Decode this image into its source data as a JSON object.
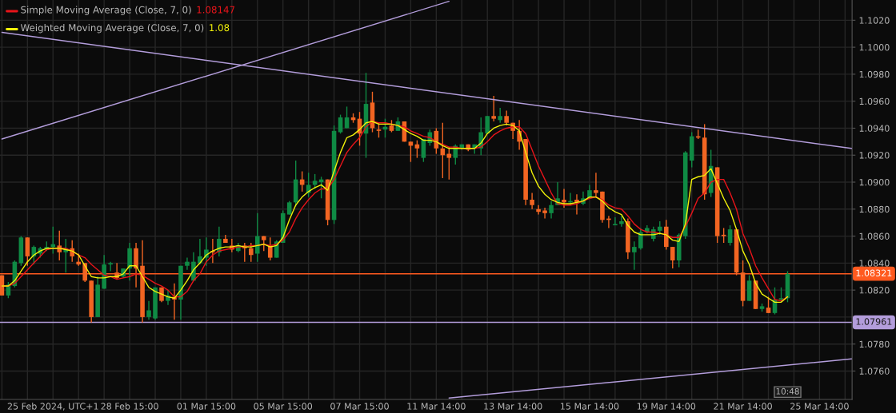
{
  "chart_data": {
    "type": "candlestick",
    "categories": [
      null,
      null,
      null,
      null,
      null,
      null,
      null,
      null,
      "25 Feb 2024, UTC+1",
      null,
      null,
      null,
      null,
      null,
      null,
      null,
      null,
      null,
      null,
      null,
      "28 Feb 15:00",
      null,
      null,
      null,
      null,
      null,
      null,
      null,
      null,
      null,
      null,
      null,
      "01 Mar 15:00",
      null,
      null,
      null,
      null,
      null,
      null,
      null,
      null,
      null,
      null,
      null,
      "05 Mar 15:00",
      null,
      null,
      null,
      null,
      null,
      null,
      null,
      null,
      null,
      null,
      null,
      "07 Mar 15:00",
      null,
      null,
      null,
      null,
      null,
      null,
      null,
      null,
      null,
      null,
      null,
      "11 Mar 14:00",
      null,
      null,
      null,
      null,
      null,
      null,
      null,
      null,
      null,
      null,
      null,
      "13 Mar 14:00",
      null,
      null,
      null,
      null,
      null,
      null,
      null,
      null,
      null,
      null,
      null,
      "15 Mar 14:00",
      null,
      null,
      null,
      null,
      null,
      null,
      null,
      null,
      null,
      null,
      null,
      "19 Mar 14:00",
      null,
      null,
      null,
      null,
      null,
      null,
      null,
      null,
      null,
      null,
      null,
      "21 Mar 14:00",
      null,
      null,
      null,
      null,
      null,
      null,
      null,
      null,
      null,
      null,
      null,
      "25 Mar 14:00",
      null,
      null,
      null,
      null,
      null
    ],
    "ohlc": [
      [
        1.0831,
        1.0831,
        1.0816,
        1.0816
      ],
      [
        1.0816,
        1.0826,
        1.0814,
        1.0824
      ],
      [
        1.0823,
        1.0842,
        1.0822,
        1.0841
      ],
      [
        1.084,
        1.086,
        1.0838,
        1.0859
      ],
      [
        1.0859,
        1.0859,
        1.0838,
        1.0845
      ],
      [
        1.0845,
        1.0853,
        1.0839,
        1.0852
      ],
      [
        1.0847,
        1.0852,
        1.0844,
        1.0851
      ],
      [
        1.085,
        1.0856,
        1.0849,
        1.0852
      ],
      [
        1.0852,
        1.0867,
        1.0847,
        1.0854
      ],
      [
        1.0853,
        1.0864,
        1.0842,
        1.0848
      ],
      [
        1.0848,
        1.0858,
        1.0833,
        1.0851
      ],
      [
        1.0851,
        1.0857,
        1.0841,
        1.0845
      ],
      [
        1.0841,
        1.0847,
        1.0838,
        1.0839
      ],
      [
        1.084,
        1.084,
        1.0826,
        1.0827
      ],
      [
        1.0827,
        1.0827,
        1.0796,
        1.08
      ],
      [
        1.08,
        1.083,
        1.08,
        1.0824
      ],
      [
        1.0821,
        1.0846,
        1.0821,
        1.0839
      ],
      [
        1.0839,
        1.0841,
        1.0834,
        1.084
      ],
      [
        1.0833,
        1.084,
        1.0828,
        1.0829
      ],
      [
        1.083,
        1.0836,
        1.0829,
        1.0836
      ],
      [
        1.0836,
        1.0855,
        1.0827,
        1.0851
      ],
      [
        1.0851,
        1.0855,
        1.0822,
        1.0836
      ],
      [
        1.0838,
        1.0857,
        1.0796,
        1.08
      ],
      [
        1.08,
        1.0812,
        1.0798,
        1.0805
      ],
      [
        1.0799,
        1.0822,
        1.0798,
        1.0822
      ],
      [
        1.0822,
        1.0822,
        1.0811,
        1.0812
      ],
      [
        1.0812,
        1.082,
        1.0809,
        1.0816
      ],
      [
        1.0815,
        1.0825,
        1.0798,
        1.0813
      ],
      [
        1.0813,
        1.0838,
        1.0798,
        1.0838
      ],
      [
        1.0838,
        1.0844,
        1.0835,
        1.0841
      ],
      [
        1.0827,
        1.0848,
        1.0827,
        1.0841
      ],
      [
        1.084,
        1.0858,
        1.0839,
        1.0845
      ],
      [
        1.0844,
        1.0859,
        1.0838,
        1.085
      ],
      [
        1.0849,
        1.0858,
        1.084,
        1.0848
      ],
      [
        1.0848,
        1.0867,
        1.0845,
        1.0858
      ],
      [
        1.0858,
        1.0861,
        1.0855,
        1.0855
      ],
      [
        1.0853,
        1.0858,
        1.0848,
        1.085
      ],
      [
        1.0849,
        1.0855,
        1.0848,
        1.0853
      ],
      [
        1.0853,
        1.0855,
        1.0841,
        1.0851
      ],
      [
        1.0851,
        1.0855,
        1.0841,
        1.0846
      ],
      [
        1.0847,
        1.0877,
        1.0841,
        1.086
      ],
      [
        1.086,
        1.086,
        1.0849,
        1.0857
      ],
      [
        1.0853,
        1.0859,
        1.0842,
        1.0844
      ],
      [
        1.0844,
        1.0857,
        1.0844,
        1.0856
      ],
      [
        1.0855,
        1.0879,
        1.0855,
        1.0877
      ],
      [
        1.0876,
        1.0886,
        1.0876,
        1.0885
      ],
      [
        1.0885,
        1.0916,
        1.0882,
        1.0902
      ],
      [
        1.0902,
        1.0908,
        1.0893,
        1.0898
      ],
      [
        1.0892,
        1.0907,
        1.0889,
        1.0898
      ],
      [
        1.0898,
        1.0906,
        1.0895,
        1.0901
      ],
      [
        1.09,
        1.0904,
        1.0888,
        1.0902
      ],
      [
        1.0902,
        1.0902,
        1.0868,
        1.0872
      ],
      [
        1.0872,
        1.0942,
        1.0869,
        1.0938
      ],
      [
        1.0937,
        1.095,
        1.0936,
        1.0948
      ],
      [
        1.094,
        1.0956,
        1.094,
        1.0948
      ],
      [
        1.0948,
        1.0951,
        1.0944,
        1.0946
      ],
      [
        1.0947,
        1.0952,
        1.0927,
        1.0936
      ],
      [
        1.0936,
        1.0981,
        1.0918,
        1.0958
      ],
      [
        1.0959,
        1.0967,
        1.0937,
        1.094
      ],
      [
        1.0939,
        1.0944,
        1.0933,
        1.0938
      ],
      [
        1.0939,
        1.0947,
        1.0933,
        1.0941
      ],
      [
        1.0942,
        1.0946,
        1.0937,
        1.0938
      ],
      [
        1.0938,
        1.0948,
        1.0938,
        1.0945
      ],
      [
        1.0945,
        1.0945,
        1.093,
        1.093
      ],
      [
        1.093,
        1.093,
        1.0915,
        1.0927
      ],
      [
        1.0928,
        1.0931,
        1.0918,
        1.0925
      ],
      [
        1.0918,
        1.0932,
        1.0915,
        1.0932
      ],
      [
        1.0929,
        1.0939,
        1.0927,
        1.0937
      ],
      [
        1.0938,
        1.094,
        1.0921,
        1.0925
      ],
      [
        1.0925,
        1.0944,
        1.0903,
        1.092
      ],
      [
        1.0921,
        1.0926,
        1.0902,
        1.0918
      ],
      [
        1.0918,
        1.0928,
        1.0913,
        1.0927
      ],
      [
        1.0925,
        1.0928,
        1.0924,
        1.0928
      ],
      [
        1.0928,
        1.0928,
        1.0923,
        1.0924
      ],
      [
        1.0925,
        1.0928,
        1.0921,
        1.0928
      ],
      [
        1.0925,
        1.0948,
        1.092,
        1.0937
      ],
      [
        1.0936,
        1.0949,
        1.0936,
        1.0949
      ],
      [
        1.0949,
        1.0964,
        1.0945,
        1.0947
      ],
      [
        1.0946,
        1.0955,
        1.0944,
        1.0949
      ],
      [
        1.0949,
        1.0953,
        1.0942,
        1.0944
      ],
      [
        1.0944,
        1.0944,
        1.0932,
        1.0938
      ],
      [
        1.0938,
        1.0946,
        1.0924,
        1.093
      ],
      [
        1.0932,
        1.0932,
        1.0883,
        1.0887
      ],
      [
        1.0887,
        1.0892,
        1.088,
        1.0883
      ],
      [
        1.088,
        1.0883,
        1.0876,
        1.0878
      ],
      [
        1.0879,
        1.0881,
        1.0873,
        1.0877
      ],
      [
        1.0877,
        1.0886,
        1.0873,
        1.0883
      ],
      [
        1.0883,
        1.09,
        1.0883,
        1.0888
      ],
      [
        1.0887,
        1.0895,
        1.0881,
        1.0885
      ],
      [
        1.0885,
        1.0892,
        1.0883,
        1.0886
      ],
      [
        1.0887,
        1.0891,
        1.0876,
        1.0885
      ],
      [
        1.0884,
        1.0893,
        1.0883,
        1.0888
      ],
      [
        1.0888,
        1.0898,
        1.0888,
        1.0894
      ],
      [
        1.0894,
        1.0907,
        1.0889,
        1.0892
      ],
      [
        1.0893,
        1.0893,
        1.087,
        1.0872
      ],
      [
        1.0873,
        1.0875,
        1.0866,
        1.0872
      ],
      [
        1.0868,
        1.0874,
        1.0868,
        1.0869
      ],
      [
        1.0869,
        1.0875,
        1.0867,
        1.0871
      ],
      [
        1.0871,
        1.0873,
        1.0843,
        1.0848
      ],
      [
        1.0848,
        1.0856,
        1.0835,
        1.0852
      ],
      [
        1.0851,
        1.0866,
        1.085,
        1.0863
      ],
      [
        1.0863,
        1.0868,
        1.0862,
        1.0866
      ],
      [
        1.0858,
        1.0867,
        1.0856,
        1.0865
      ],
      [
        1.0864,
        1.0871,
        1.0861,
        1.0867
      ],
      [
        1.0867,
        1.0872,
        1.085,
        1.0852
      ],
      [
        1.0852,
        1.0852,
        1.0836,
        1.0842
      ],
      [
        1.0842,
        1.0862,
        1.0837,
        1.0861
      ],
      [
        1.086,
        1.0923,
        1.0858,
        1.0922
      ],
      [
        1.0916,
        1.0937,
        1.0911,
        1.0934
      ],
      [
        1.0934,
        1.0939,
        1.0932,
        1.0933
      ],
      [
        1.0933,
        1.0943,
        1.0887,
        1.0891
      ],
      [
        1.0892,
        1.0924,
        1.0889,
        1.0912
      ],
      [
        1.0911,
        1.0911,
        1.0855,
        1.086
      ],
      [
        1.0861,
        1.0866,
        1.0855,
        1.086
      ],
      [
        1.0855,
        1.0868,
        1.0853,
        1.0865
      ],
      [
        1.0865,
        1.0865,
        1.0831,
        1.0833
      ],
      [
        1.0833,
        1.0842,
        1.0808,
        1.0812
      ],
      [
        1.0812,
        1.0831,
        1.0812,
        1.0827
      ],
      [
        1.0827,
        1.0827,
        1.0806,
        1.0806
      ],
      [
        1.0806,
        1.081,
        1.0804,
        1.0808
      ],
      [
        1.0807,
        1.0815,
        1.0803,
        1.0803
      ],
      [
        1.0803,
        1.0822,
        1.0802,
        1.0813
      ],
      [
        1.0813,
        1.0822,
        1.0811,
        1.0814
      ],
      [
        1.0814,
        1.0834,
        1.0811,
        1.0832
      ],
      null,
      null,
      null,
      null,
      null,
      null,
      null,
      null,
      null,
      null
    ],
    "colors": [
      "#f26522",
      "#0f8a44",
      "#0f8a44",
      "#0f8a44",
      "#f26522",
      "#0f8a44",
      "#0f8a44",
      "#0f8a44",
      "#0f8a44",
      "#f26522",
      "#0f8a44",
      "#f26522",
      "#f26522",
      "#f26522",
      "#f26522",
      "#0f8a44",
      "#0f8a44",
      "#0f8a44",
      "#f26522",
      "#0f8a44",
      "#0f8a44",
      "#f26522",
      "#f26522",
      "#0f8a44",
      "#0f8a44",
      "#f26522",
      "#0f8a44",
      "#f26522",
      "#0f8a44",
      "#0f8a44",
      "#0f8a44",
      "#0f8a44",
      "#0f8a44",
      "#f26522",
      "#0f8a44",
      "#f26522",
      "#f26522",
      "#0f8a44",
      "#f26522",
      "#f26522",
      "#0f8a44",
      "#f26522",
      "#f26522",
      "#0f8a44",
      "#0f8a44",
      "#0f8a44",
      "#0f8a44",
      "#f26522",
      "#0f8a44",
      "#0f8a44",
      "#0f8a44",
      "#f26522",
      "#0f8a44",
      "#0f8a44",
      "#0f8a44",
      "#f26522",
      "#f26522",
      "#0f8a44",
      "#f26522",
      "#f26522",
      "#0f8a44",
      "#f26522",
      "#0f8a44",
      "#f26522",
      "#f26522",
      "#f26522",
      "#0f8a44",
      "#0f8a44",
      "#f26522",
      "#f26522",
      "#f26522",
      "#0f8a44",
      "#0f8a44",
      "#f26522",
      "#0f8a44",
      "#0f8a44",
      "#0f8a44",
      "#f26522",
      "#0f8a44",
      "#f26522",
      "#f26522",
      "#f26522",
      "#f26522",
      "#f26522",
      "#f26522",
      "#f26522",
      "#0f8a44",
      "#0f8a44",
      "#f26522",
      "#0f8a44",
      "#f26522",
      "#0f8a44",
      "#0f8a44",
      "#f26522",
      "#f26522",
      "#f26522",
      "#0f8a44",
      "#0f8a44",
      "#f26522",
      "#0f8a44",
      "#0f8a44",
      "#0f8a44",
      "#0f8a44",
      "#0f8a44",
      "#f26522",
      "#f26522",
      "#0f8a44",
      "#0f8a44",
      "#0f8a44",
      "#f26522",
      "#f26522",
      "#0f8a44",
      "#f26522",
      "#f26522",
      "#0f8a44",
      "#f26522",
      "#f26522",
      "#0f8a44",
      "#f26522",
      "#0f8a44",
      "#f26522",
      "#0f8a44",
      "#0f8a44",
      "#0f8a44",
      null,
      null,
      null,
      null,
      null,
      null,
      null,
      null,
      null,
      null
    ],
    "series": [
      {
        "name": "Simple Moving Average (Close, 7, 0)",
        "type": "line",
        "color": "#e8141a",
        "values": [
          1.0823,
          1.0823,
          1.0825,
          1.083,
          1.0835,
          1.084,
          1.0845,
          1.085,
          1.0851,
          1.0851,
          1.0851,
          1.0849,
          1.0846,
          1.0844,
          1.0839,
          1.0835,
          1.0831,
          1.083,
          1.0828,
          1.0829,
          1.083,
          1.0832,
          1.0831,
          1.0828,
          1.0825,
          1.0823,
          1.082,
          1.0815,
          1.0815,
          1.0819,
          1.0827,
          1.0832,
          1.0841,
          1.0846,
          1.0849,
          1.085,
          1.0851,
          1.0852,
          1.0852,
          1.0853,
          1.0853,
          1.0854,
          1.0853,
          1.0854,
          1.0857,
          1.0863,
          1.0873,
          1.0881,
          1.0887,
          1.0892,
          1.0895,
          1.0895,
          1.0902,
          1.0912,
          1.0922,
          1.0928,
          1.0933,
          1.0941,
          1.0945,
          1.0944,
          1.0944,
          1.0943,
          1.0942,
          1.0941,
          1.0938,
          1.0936,
          1.0934,
          1.0933,
          1.093,
          1.0928,
          1.0926,
          1.0926,
          1.0925,
          1.0925,
          1.0925,
          1.0926,
          1.093,
          1.0935,
          1.0938,
          1.094,
          1.0941,
          1.0941,
          1.0936,
          1.0924,
          1.0912,
          1.0902,
          1.0892,
          1.0884,
          1.0883,
          1.0883,
          1.0884,
          1.0886,
          1.0888,
          1.0889,
          1.0887,
          1.0883,
          1.0881,
          1.088,
          1.0875,
          1.0869,
          1.0865,
          1.0863,
          1.0863,
          1.0862,
          1.0861,
          1.0859,
          1.0859,
          1.0867,
          1.0877,
          1.0888,
          1.0892,
          1.09,
          1.0902,
          1.0902,
          1.0892,
          1.088,
          1.0862,
          1.0851,
          1.0838,
          1.0829,
          1.0821,
          1.0813,
          1.0812,
          1.0815,
          null,
          null,
          null,
          null,
          null,
          null,
          null,
          null,
          null,
          null
        ]
      },
      {
        "name": "Weighted Moving Average (Close, 7, 0)",
        "type": "line",
        "color": "#f2f20a",
        "values": [
          1.0823,
          1.0823,
          1.0827,
          1.0834,
          1.0841,
          1.0846,
          1.0849,
          1.0851,
          1.0851,
          1.0851,
          1.085,
          1.0849,
          1.0846,
          1.0838,
          1.083,
          1.0829,
          1.0829,
          1.083,
          1.083,
          1.0832,
          1.0838,
          1.0838,
          1.083,
          1.0822,
          1.0819,
          1.0817,
          1.0815,
          1.0814,
          1.082,
          1.0827,
          1.0835,
          1.084,
          1.0846,
          1.0849,
          1.0851,
          1.0852,
          1.0852,
          1.0853,
          1.0852,
          1.0852,
          1.0853,
          1.0854,
          1.0852,
          1.0853,
          1.0859,
          1.0872,
          1.0883,
          1.0889,
          1.0893,
          1.0896,
          1.0898,
          1.0894,
          1.0908,
          1.0922,
          1.0933,
          1.0935,
          1.0939,
          1.0944,
          1.0945,
          1.0943,
          1.0943,
          1.0943,
          1.0942,
          1.0939,
          1.0936,
          1.0934,
          1.0931,
          1.0931,
          1.093,
          1.0927,
          1.0925,
          1.0925,
          1.0925,
          1.0925,
          1.0925,
          1.0929,
          1.0936,
          1.094,
          1.0942,
          1.0943,
          1.0942,
          1.0938,
          1.0922,
          1.0907,
          1.0897,
          1.0891,
          1.0887,
          1.0885,
          1.0884,
          1.0884,
          1.0885,
          1.0886,
          1.0889,
          1.0889,
          1.0886,
          1.0881,
          1.0878,
          1.0876,
          1.0868,
          1.0863,
          1.0861,
          1.0861,
          1.0861,
          1.0862,
          1.0861,
          1.0857,
          1.0856,
          1.0869,
          1.0902,
          1.0904,
          1.0905,
          1.091,
          1.0899,
          1.0888,
          1.0879,
          1.0865,
          1.0849,
          1.0839,
          1.0825,
          1.0817,
          1.0814,
          1.0811,
          1.0811,
          1.0815,
          null,
          null,
          null,
          null,
          null,
          null,
          null,
          null,
          null,
          null
        ]
      },
      {
        "type": "line",
        "color": "#b39ddb",
        "values": [
          1.0932,
          null,
          null,
          null,
          null,
          null,
          null,
          null,
          null,
          null,
          null,
          null,
          null,
          null,
          null,
          null,
          null,
          null,
          null,
          null,
          null,
          null,
          null,
          null,
          null,
          null,
          null,
          null,
          null,
          null,
          null,
          null,
          null,
          null,
          null,
          null,
          null,
          null,
          null,
          null,
          null,
          null,
          null,
          null,
          null,
          null,
          null,
          null,
          null,
          null,
          null,
          null,
          null,
          null,
          null,
          null,
          null,
          null,
          null,
          null,
          null,
          null,
          null,
          null,
          null,
          null,
          null,
          null,
          null,
          null,
          1.1034,
          null,
          null,
          null,
          null,
          null,
          null,
          null,
          null,
          null,
          null,
          null,
          null,
          null,
          null,
          null,
          null,
          null,
          null,
          null,
          null,
          null,
          null,
          null,
          null,
          null,
          null,
          null,
          null,
          null,
          null,
          null,
          null,
          null,
          null,
          null,
          null,
          null,
          null,
          null,
          null,
          null,
          null,
          null,
          null,
          null,
          null,
          null,
          null,
          null,
          null,
          null,
          null,
          null,
          null,
          null,
          null,
          null,
          null,
          null,
          null,
          null,
          null,
          null
        ]
      },
      {
        "type": "line",
        "color": "#b39ddb",
        "values": [
          1.1011,
          null,
          null,
          null,
          null,
          null,
          null,
          null,
          null,
          null,
          null,
          null,
          null,
          null,
          null,
          null,
          null,
          null,
          null,
          null,
          null,
          null,
          null,
          null,
          null,
          null,
          null,
          null,
          null,
          null,
          null,
          null,
          null,
          null,
          null,
          null,
          null,
          null,
          null,
          null,
          null,
          null,
          null,
          null,
          null,
          null,
          null,
          null,
          null,
          null,
          null,
          null,
          null,
          null,
          null,
          null,
          null,
          null,
          null,
          null,
          null,
          null,
          null,
          null,
          null,
          null,
          null,
          null,
          null,
          null,
          null,
          null,
          null,
          null,
          null,
          null,
          null,
          null,
          null,
          null,
          null,
          null,
          null,
          null,
          null,
          null,
          null,
          null,
          null,
          null,
          null,
          null,
          null,
          null,
          null,
          null,
          null,
          null,
          null,
          null,
          null,
          null,
          null,
          null,
          null,
          null,
          null,
          null,
          null,
          null,
          null,
          null,
          null,
          null,
          null,
          null,
          null,
          null,
          null,
          null,
          null,
          null,
          null,
          null,
          null,
          null,
          null,
          null,
          null,
          null,
          null,
          null,
          null,
          1.0925
        ]
      },
      {
        "type": "line",
        "color": "#b39ddb",
        "values": [
          null,
          null,
          null,
          null,
          null,
          null,
          null,
          null,
          null,
          null,
          null,
          null,
          null,
          null,
          null,
          null,
          null,
          null,
          null,
          null,
          null,
          null,
          null,
          null,
          null,
          null,
          null,
          null,
          null,
          null,
          null,
          null,
          null,
          null,
          null,
          null,
          null,
          null,
          null,
          null,
          null,
          null,
          null,
          null,
          null,
          null,
          null,
          null,
          null,
          null,
          null,
          null,
          null,
          null,
          null,
          null,
          null,
          null,
          null,
          null,
          null,
          null,
          null,
          null,
          null,
          null,
          null,
          null,
          null,
          null,
          1.074,
          null,
          null,
          null,
          null,
          null,
          null,
          null,
          null,
          null,
          null,
          null,
          null,
          null,
          null,
          null,
          null,
          null,
          null,
          null,
          null,
          null,
          null,
          null,
          null,
          null,
          null,
          null,
          null,
          null,
          null,
          null,
          null,
          null,
          null,
          null,
          null,
          null,
          null,
          null,
          null,
          null,
          null,
          null,
          null,
          null,
          null,
          null,
          null,
          null,
          null,
          null,
          null,
          null,
          null,
          null,
          null,
          null,
          null,
          null,
          null,
          null,
          null,
          1.0769
        ]
      }
    ],
    "ylim": [
      1.0739,
      1.1035
    ],
    "yticks": [
      {
        "value": 1.076,
        "label": "1.0760"
      },
      {
        "value": 1.078,
        "label": "1.0780"
      },
      {
        "value": 1.08,
        "label": null
      },
      {
        "value": 1.082,
        "label": "1.0820"
      },
      {
        "value": 1.084,
        "label": "1.0840"
      },
      {
        "value": 1.086,
        "label": "1.0860"
      },
      {
        "value": 1.088,
        "label": "1.0880"
      },
      {
        "value": 1.09,
        "label": "1.0900"
      },
      {
        "value": 1.092,
        "label": "1.0920"
      },
      {
        "value": 1.094,
        "label": "1.0940"
      },
      {
        "value": 1.096,
        "label": "1.0960"
      },
      {
        "value": 1.098,
        "label": "1.0980"
      },
      {
        "value": 1.1,
        "label": "1.1000"
      },
      {
        "value": 1.102,
        "label": "1.1020"
      }
    ],
    "ref_lines": [
      {
        "axis": "y",
        "value": 1.08321,
        "label": "1.08321",
        "color": "#ff5a1f"
      },
      {
        "axis": "y",
        "value": 1.07961,
        "label": "1.07961",
        "color": "#b39ddb"
      }
    ],
    "annotations": [
      "1.08147",
      "1.08",
      "10:48"
    ],
    "grid": true,
    "legend": "top left"
  }
}
